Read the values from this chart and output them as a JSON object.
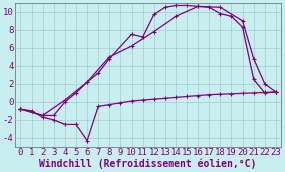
{
  "xlabel": "Windchill (Refroidissement éolien,°C)",
  "background_color": "#c8eef0",
  "line_color": "#800080",
  "xlim": [
    -0.5,
    23.5
  ],
  "ylim": [
    -5,
    11
  ],
  "xticks": [
    0,
    1,
    2,
    3,
    4,
    5,
    6,
    7,
    8,
    9,
    10,
    11,
    12,
    13,
    14,
    15,
    16,
    17,
    18,
    19,
    20,
    21,
    22,
    23
  ],
  "yticks": [
    -4,
    -2,
    0,
    2,
    4,
    6,
    8,
    10
  ],
  "line1_x": [
    0,
    1,
    2,
    3,
    4,
    5,
    6,
    7,
    8,
    9,
    10,
    11,
    12,
    13,
    14,
    15,
    16,
    17,
    18,
    19,
    20,
    21,
    22,
    23
  ],
  "line1_y": [
    -0.8,
    -1.0,
    -1.7,
    -2.0,
    -2.5,
    -2.5,
    -4.3,
    -0.5,
    -0.3,
    -0.1,
    0.1,
    0.2,
    0.3,
    0.4,
    0.5,
    0.6,
    0.7,
    0.8,
    0.85,
    0.9,
    0.95,
    1.0,
    1.05,
    1.1
  ],
  "line2_x": [
    0,
    2,
    3,
    4,
    5,
    6,
    7,
    8,
    10,
    11,
    12,
    13,
    14,
    15,
    16,
    17,
    18,
    19,
    20,
    21,
    22,
    23
  ],
  "line2_y": [
    -0.8,
    -1.5,
    -1.5,
    0.0,
    1.0,
    2.2,
    3.2,
    4.8,
    7.5,
    7.2,
    9.7,
    10.5,
    10.7,
    10.7,
    10.6,
    10.5,
    9.8,
    9.5,
    8.3,
    2.5,
    1.0,
    1.1
  ],
  "line3_x": [
    0,
    2,
    4,
    6,
    8,
    10,
    12,
    14,
    16,
    18,
    20,
    21,
    22,
    23
  ],
  "line3_y": [
    -0.8,
    -1.5,
    0.2,
    2.2,
    5.0,
    6.2,
    7.8,
    9.5,
    10.6,
    10.5,
    9.0,
    4.8,
    2.0,
    1.1
  ],
  "grid_color": "#9dcfcf",
  "font_color": "#800080",
  "font_size": 6.5,
  "xlabel_fontsize": 7.0
}
